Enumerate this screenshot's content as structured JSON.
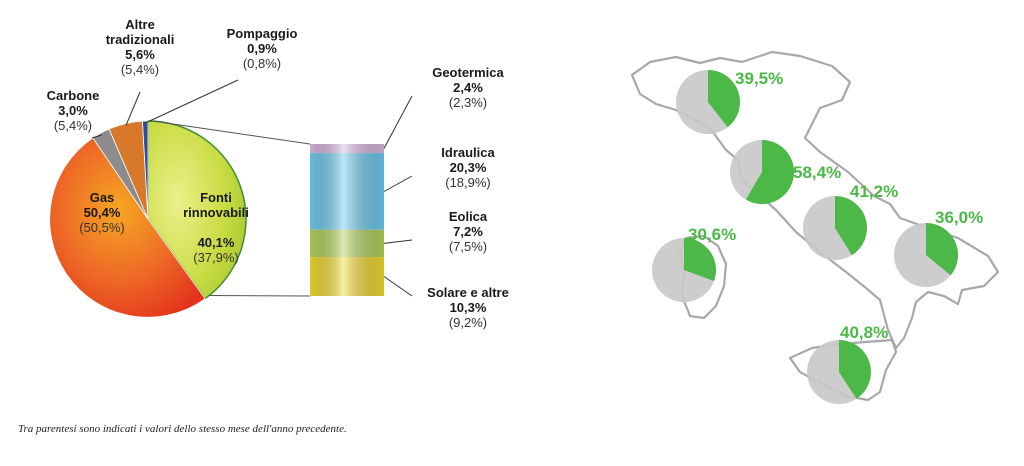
{
  "chart_data": [
    {
      "type": "pie",
      "slices": [
        {
          "label": "Fonti rinnovabili",
          "label_lines": [
            "Fonti",
            "rinnovabili"
          ],
          "value": 40.1,
          "value_text": "40,1%",
          "prev_text": "(37,9%)",
          "color": "#b6d63a"
        },
        {
          "label": "Gas",
          "label_lines": [
            "Gas"
          ],
          "value": 50.4,
          "value_text": "50,4%",
          "prev_text": "(50,5%)",
          "color": "#ea4b21"
        },
        {
          "label": "Carbone",
          "label_lines": [
            "Carbone"
          ],
          "value": 3.0,
          "value_text": "3,0%",
          "prev_text": "(5,4%)",
          "color": "#8c8c8c"
        },
        {
          "label": "Altre tradizionali",
          "label_lines": [
            "Altre",
            "tradizionali"
          ],
          "value": 5.6,
          "value_text": "5,6%",
          "prev_text": "(5,4%)",
          "color": "#d8782a"
        },
        {
          "label": "Pompaggio",
          "label_lines": [
            "Pompaggio"
          ],
          "value": 0.9,
          "value_text": "0,9%",
          "prev_text": "(0,8%)",
          "color": "#2f4e9a"
        }
      ]
    },
    {
      "type": "bar",
      "stacked": true,
      "segments": [
        {
          "label": "Geotermica",
          "label_lines": [
            "Geotermica"
          ],
          "value": 2.4,
          "value_text": "2,4%",
          "prev_text": "(2,3%)",
          "color": "#d9b8e0"
        },
        {
          "label": "Idraulica",
          "label_lines": [
            "Idraulica"
          ],
          "value": 20.3,
          "value_text": "20,3%",
          "prev_text": "(18,9%)",
          "color": "#6ecbef"
        },
        {
          "label": "Eolica",
          "label_lines": [
            "Eolica"
          ],
          "value": 7.2,
          "value_text": "7,2%",
          "prev_text": "(7,5%)",
          "color": "#b2d35a"
        },
        {
          "label": "Solare e altre",
          "label_lines": [
            "Solare e altre"
          ],
          "value": 10.3,
          "value_text": "10,3%",
          "prev_text": "(9,2%)",
          "color": "#f2da2e"
        }
      ]
    },
    {
      "type": "pie",
      "description_kind": "regional map pies",
      "regions": [
        {
          "value": 39.5,
          "value_text": "39,5%"
        },
        {
          "value": 58.4,
          "value_text": "58,4%"
        },
        {
          "value": 41.2,
          "value_text": "41,2%"
        },
        {
          "value": 36.0,
          "value_text": "36,0%"
        },
        {
          "value": 30.6,
          "value_text": "30,6%"
        },
        {
          "value": 40.8,
          "value_text": "40,8%"
        }
      ],
      "colors": {
        "share": "#4cb848",
        "rest": "#c8c8c8",
        "label": "#4cb848",
        "outline": "#a0a0a0"
      }
    }
  ],
  "footnote": "Tra parentesi sono indicati i valori dello stesso mese dell'anno precedente."
}
